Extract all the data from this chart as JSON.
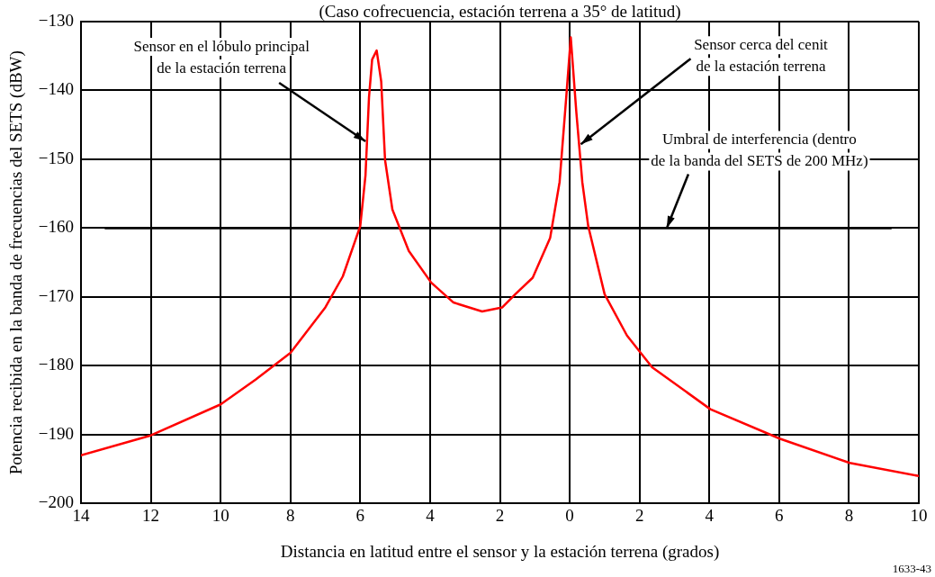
{
  "chart_data": {
    "type": "line",
    "title": "(Caso cofrecuencia, estación terrena a 35° de latitud)",
    "xlabel": "Distancia en latitud entre el sensor y la estación terrena (grados)",
    "ylabel": "Potencia recibida en la banda de frecuencias del SETS (dBW)",
    "xlim": [
      -14,
      10
    ],
    "xticks": [
      {
        "value": -14,
        "label": "14"
      },
      {
        "value": -12,
        "label": "12"
      },
      {
        "value": -10,
        "label": "10"
      },
      {
        "value": -8,
        "label": "8"
      },
      {
        "value": -6,
        "label": "6"
      },
      {
        "value": -4,
        "label": "4"
      },
      {
        "value": -2,
        "label": "2"
      },
      0,
      2,
      4,
      6,
      8,
      10
    ],
    "ylim": [
      -200,
      -130
    ],
    "yticks": [
      -200,
      -190,
      -180,
      -170,
      -160,
      -150,
      -140,
      -130
    ],
    "grid": true,
    "legend": false,
    "marker": "none",
    "line_style": "solid",
    "series": [
      {
        "color": "#ff0000",
        "x": [
          -14,
          -12,
          -10,
          -9,
          -8,
          -7,
          -6.5,
          -6,
          -5.85,
          -5.75,
          -5.66,
          -5.53,
          -5.4,
          -5.29,
          -5.08,
          -4.61,
          -3.97,
          -3.33,
          -2.51,
          -1.93,
          -1.56,
          -1.06,
          -0.56,
          -0.29,
          -0.1,
          0.03,
          0.19,
          0.36,
          0.53,
          1.0,
          1.64,
          2.36,
          4.03,
          6.03,
          8.02,
          10
        ],
        "values": [
          -193.0,
          -190.1,
          -185.6,
          -182.0,
          -178.1,
          -171.5,
          -167.0,
          -159.7,
          -152.3,
          -141.0,
          -135.5,
          -134.2,
          -138.7,
          -150.1,
          -157.3,
          -163.3,
          -167.9,
          -170.8,
          -172.1,
          -171.5,
          -169.6,
          -167.2,
          -161.4,
          -153.3,
          -141.0,
          -132.3,
          -143.2,
          -153.3,
          -159.7,
          -169.6,
          -175.6,
          -180.2,
          -186.3,
          -190.6,
          -194.1,
          -196.0
        ]
      },
      {
        "color": "#000000",
        "x": [
          -13.3,
          9.2
        ],
        "values": [
          -160,
          -160
        ]
      }
    ],
    "annotations": [
      {
        "text": "Sensor en el lóbulo principal\nde la estación terrena",
        "x": -5.85,
        "y": -147.4
      },
      {
        "text": "Sensor cerca del cenit\nde la estación terrena",
        "x": 0.32,
        "y": -147.8
      },
      {
        "text": "Umbral de interferencia (dentro\nde la banda del SETS de 200 MHz)",
        "x": 2.78,
        "y": -160
      },
      "1633-43"
    ]
  }
}
